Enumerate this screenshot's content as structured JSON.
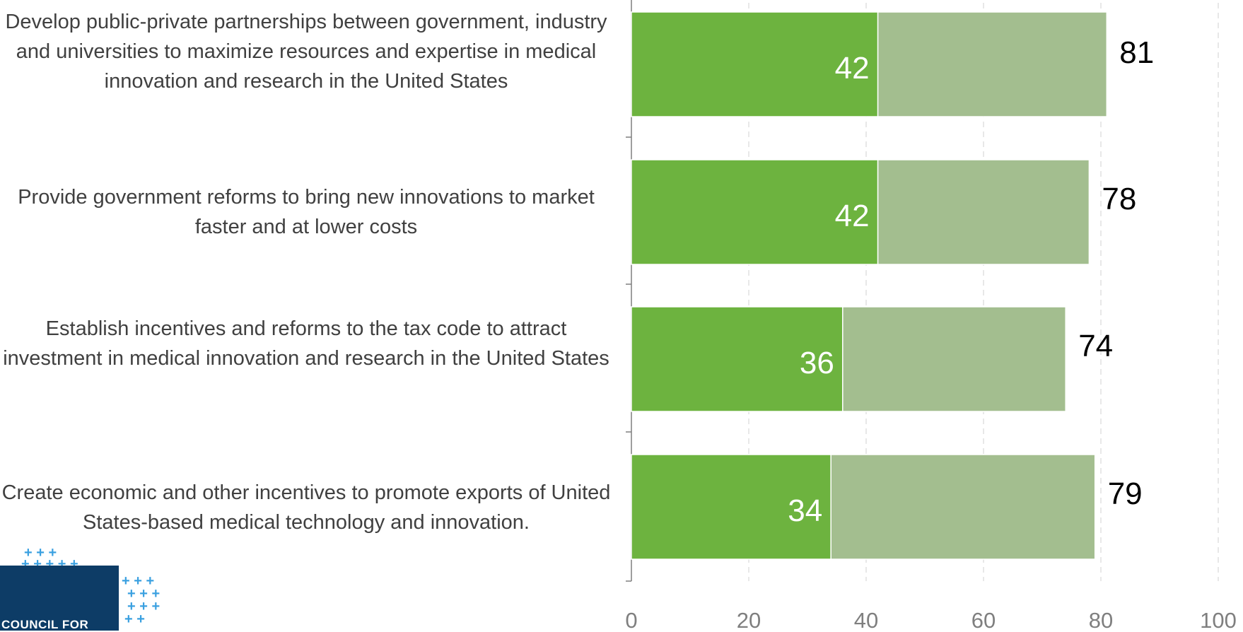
{
  "chart_data": {
    "type": "bar",
    "orientation": "horizontal",
    "stacked": true,
    "categories": [
      "Develop public-private partnerships between government, industry and universities to maximize resources and expertise in medical innovation and research in the United States",
      "Provide government reforms to bring new innovations to market faster and at lower costs",
      "Establish incentives and reforms to the tax code to attract investment in medical innovation and research in the United States",
      "Create economic and other incentives to promote exports of United States-based medical technology and innovation."
    ],
    "series": [
      {
        "values": [
          42,
          42,
          36,
          34
        ],
        "color": "#6db33f"
      },
      {
        "values": [
          39,
          36,
          38,
          45
        ],
        "color": "#a3be8f"
      }
    ],
    "segment_labels": [
      "42",
      "42",
      "36",
      "34"
    ],
    "totals": [
      "81",
      "78",
      "74",
      "79"
    ],
    "xlim": [
      0,
      100
    ],
    "xticks": [
      "0",
      "20",
      "40",
      "60",
      "80",
      "100"
    ],
    "grid": "vertical-dashed",
    "title": "",
    "xlabel": "",
    "ylabel": ""
  },
  "logo": {
    "text": "COUNCIL FOR",
    "colors": {
      "box": "#0d3c66",
      "plus": "#3aa0e0"
    }
  }
}
